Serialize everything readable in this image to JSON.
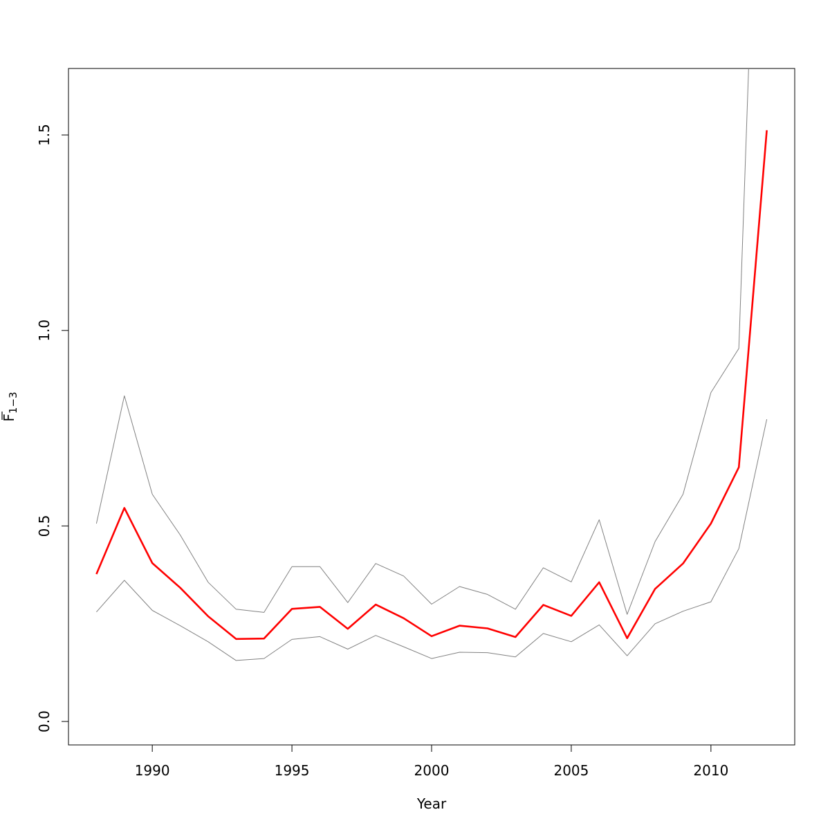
{
  "chart_data": {
    "type": "line",
    "title": "",
    "xlabel": "Year",
    "ylabel_main": "F",
    "ylabel_sub": "1−3",
    "xlim": [
      1987,
      2013
    ],
    "ylim": [
      -0.06,
      1.67
    ],
    "xticks": [
      1990,
      1995,
      2000,
      2005,
      2010
    ],
    "yticks": [
      0.0,
      0.5,
      1.0,
      1.5
    ],
    "ytick_labels": [
      "0.0",
      "0.5",
      "1.0",
      "1.5"
    ],
    "grid": false,
    "legend": "none",
    "x": [
      1988,
      1989,
      1990,
      1991,
      1992,
      1993,
      1994,
      1995,
      1996,
      1997,
      1998,
      1999,
      2000,
      2001,
      2002,
      2003,
      2004,
      2005,
      2006,
      2007,
      2008,
      2009,
      2010,
      2011,
      2012
    ],
    "series": [
      {
        "role": "estimate",
        "color": "#ff0000",
        "values": [
          0.377,
          0.546,
          0.405,
          0.342,
          0.269,
          0.211,
          0.212,
          0.288,
          0.293,
          0.237,
          0.299,
          0.264,
          0.218,
          0.245,
          0.238,
          0.216,
          0.298,
          0.27,
          0.356,
          0.213,
          0.339,
          0.404,
          0.506,
          0.65,
          1.512
        ]
      },
      {
        "role": "upper-bound",
        "color": "#808080",
        "values": [
          0.506,
          0.833,
          0.581,
          0.477,
          0.356,
          0.287,
          0.279,
          0.396,
          0.396,
          0.304,
          0.404,
          0.372,
          0.3,
          0.345,
          0.325,
          0.287,
          0.393,
          0.357,
          0.516,
          0.274,
          0.46,
          0.581,
          0.841,
          0.954,
          3.0
        ]
      },
      {
        "role": "lower-bound",
        "color": "#808080",
        "values": [
          0.28,
          0.361,
          0.284,
          0.245,
          0.204,
          0.156,
          0.161,
          0.21,
          0.217,
          0.185,
          0.22,
          0.191,
          0.161,
          0.177,
          0.176,
          0.165,
          0.225,
          0.204,
          0.247,
          0.168,
          0.25,
          0.282,
          0.306,
          0.442,
          0.773
        ]
      }
    ]
  }
}
